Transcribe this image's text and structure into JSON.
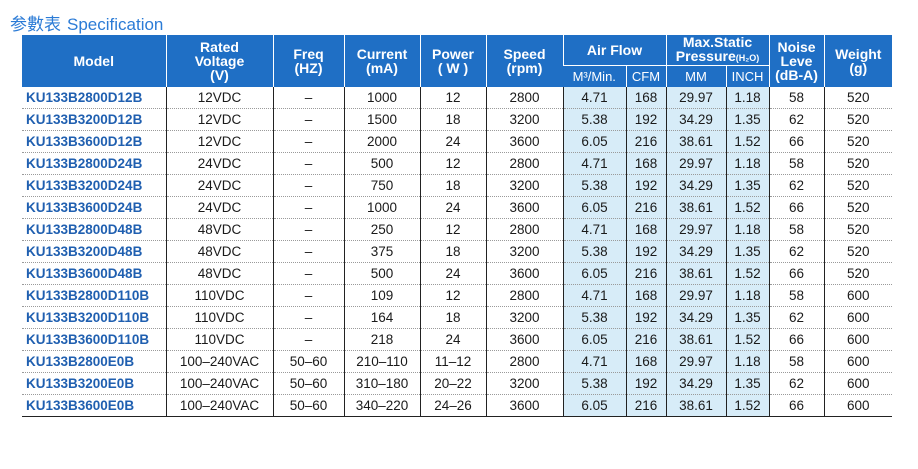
{
  "page": {
    "title_cn": "参數表",
    "title_en": "Specification",
    "accent_color": "#2b7bd6",
    "header_color": "#1f6fc5",
    "highlight_color": "#d7ecf8"
  },
  "table": {
    "headers": {
      "model": "Model",
      "voltage_1": "Rated",
      "voltage_2": "Voltage",
      "voltage_3": "(V)",
      "freq_1": "Freq",
      "freq_2": "(HZ)",
      "current_1": "Current",
      "current_2": "(mA)",
      "power_1": "Power",
      "power_2": "( W )",
      "speed_1": "Speed",
      "speed_2": "(rpm)",
      "airflow": "Air Flow",
      "airflow_m3": "M³/Min.",
      "airflow_cfm": "CFM",
      "pressure_1": "Max.Static",
      "pressure_2": "Pressure",
      "pressure_unit": "(H₂O)",
      "pressure_mm": "MM",
      "pressure_inch": "INCH",
      "noise_1": "Noise",
      "noise_2": "Leve",
      "noise_3": "(dB-A)",
      "weight_1": "Weight",
      "weight_2": "(g)"
    },
    "rows": [
      [
        "KU133B2800D12B",
        "12VDC",
        "–",
        "1000",
        "12",
        "2800",
        "4.71",
        "168",
        "29.97",
        "1.18",
        "58",
        "520"
      ],
      [
        "KU133B3200D12B",
        "12VDC",
        "–",
        "1500",
        "18",
        "3200",
        "5.38",
        "192",
        "34.29",
        "1.35",
        "62",
        "520"
      ],
      [
        "KU133B3600D12B",
        "12VDC",
        "–",
        "2000",
        "24",
        "3600",
        "6.05",
        "216",
        "38.61",
        "1.52",
        "66",
        "520"
      ],
      [
        "KU133B2800D24B",
        "24VDC",
        "–",
        "500",
        "12",
        "2800",
        "4.71",
        "168",
        "29.97",
        "1.18",
        "58",
        "520"
      ],
      [
        "KU133B3200D24B",
        "24VDC",
        "–",
        "750",
        "18",
        "3200",
        "5.38",
        "192",
        "34.29",
        "1.35",
        "62",
        "520"
      ],
      [
        "KU133B3600D24B",
        "24VDC",
        "–",
        "1000",
        "24",
        "3600",
        "6.05",
        "216",
        "38.61",
        "1.52",
        "66",
        "520"
      ],
      [
        "KU133B2800D48B",
        "48VDC",
        "–",
        "250",
        "12",
        "2800",
        "4.71",
        "168",
        "29.97",
        "1.18",
        "58",
        "520"
      ],
      [
        "KU133B3200D48B",
        "48VDC",
        "–",
        "375",
        "18",
        "3200",
        "5.38",
        "192",
        "34.29",
        "1.35",
        "62",
        "520"
      ],
      [
        "KU133B3600D48B",
        "48VDC",
        "–",
        "500",
        "24",
        "3600",
        "6.05",
        "216",
        "38.61",
        "1.52",
        "66",
        "520"
      ],
      [
        "KU133B2800D110B",
        "110VDC",
        "–",
        "109",
        "12",
        "2800",
        "4.71",
        "168",
        "29.97",
        "1.18",
        "58",
        "600"
      ],
      [
        "KU133B3200D110B",
        "110VDC",
        "–",
        "164",
        "18",
        "3200",
        "5.38",
        "192",
        "34.29",
        "1.35",
        "62",
        "600"
      ],
      [
        "KU133B3600D110B",
        "110VDC",
        "–",
        "218",
        "24",
        "3600",
        "6.05",
        "216",
        "38.61",
        "1.52",
        "66",
        "600"
      ],
      [
        "KU133B2800E0B",
        "100–240VAC",
        "50–60",
        "210–110",
        "11–12",
        "2800",
        "4.71",
        "168",
        "29.97",
        "1.18",
        "58",
        "600"
      ],
      [
        "KU133B3200E0B",
        "100–240VAC",
        "50–60",
        "310–180",
        "20–22",
        "3200",
        "5.38",
        "192",
        "34.29",
        "1.35",
        "62",
        "600"
      ],
      [
        "KU133B3600E0B",
        "100–240VAC",
        "50–60",
        "340–220",
        "24–26",
        "3600",
        "6.05",
        "216",
        "38.61",
        "1.52",
        "66",
        "600"
      ]
    ]
  }
}
